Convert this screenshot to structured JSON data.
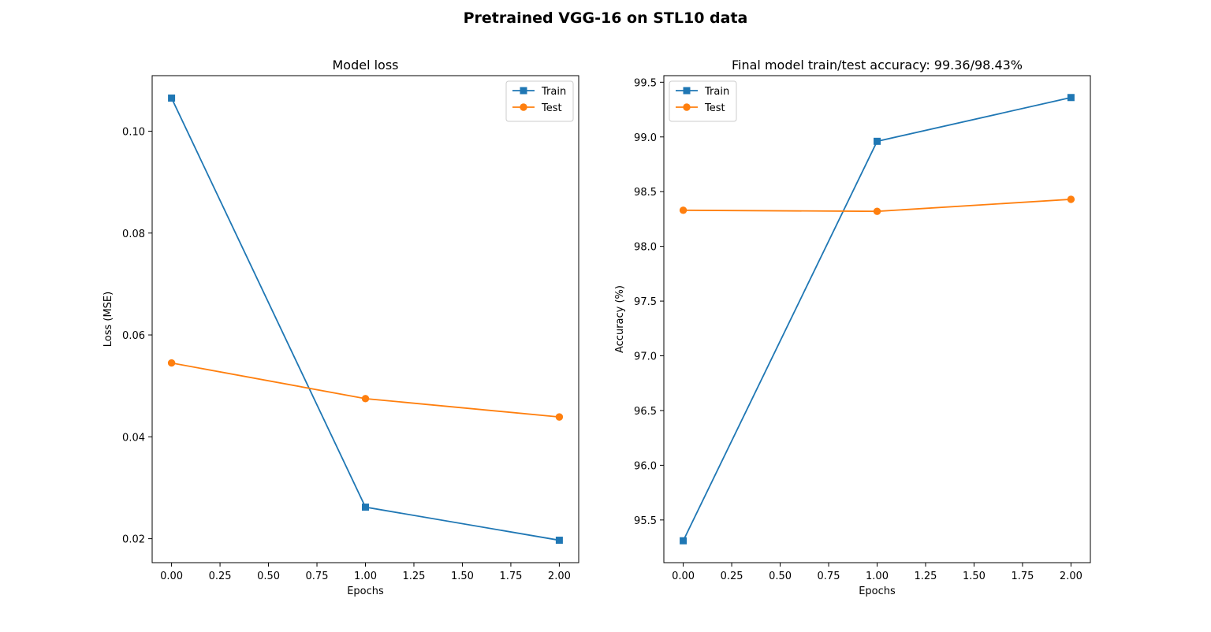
{
  "figure": {
    "suptitle": "Pretrained VGG-16 on STL10 data"
  },
  "chart_data": [
    {
      "type": "line",
      "title": "Model loss",
      "xlabel": "Epochs",
      "ylabel": "Loss (MSE)",
      "x": [
        0,
        1,
        2
      ],
      "xlim": [
        -0.1,
        2.1
      ],
      "ylim": [
        0.0153,
        0.1109
      ],
      "xticks": [
        0.0,
        0.25,
        0.5,
        0.75,
        1.0,
        1.25,
        1.5,
        1.75,
        2.0
      ],
      "xtick_labels": [
        "0.00",
        "0.25",
        "0.50",
        "0.75",
        "1.00",
        "1.25",
        "1.50",
        "1.75",
        "2.00"
      ],
      "yticks": [
        0.02,
        0.04,
        0.06,
        0.08,
        0.1
      ],
      "ytick_labels": [
        "0.02",
        "0.04",
        "0.06",
        "0.08",
        "0.10"
      ],
      "legend_position": "top-right",
      "grid": false,
      "series": [
        {
          "name": "Train",
          "values": [
            0.1065,
            0.0262,
            0.0197
          ],
          "color": "#1f77b4",
          "marker": "square"
        },
        {
          "name": "Test",
          "values": [
            0.0545,
            0.0475,
            0.0439
          ],
          "color": "#ff7f0e",
          "marker": "circle"
        }
      ]
    },
    {
      "type": "line",
      "title": "Final model train/test accuracy: 99.36/98.43%",
      "xlabel": "Epochs",
      "ylabel": "Accuracy (%)",
      "x": [
        0,
        1,
        2
      ],
      "xlim": [
        -0.1,
        2.1
      ],
      "ylim": [
        95.11,
        99.56
      ],
      "xticks": [
        0.0,
        0.25,
        0.5,
        0.75,
        1.0,
        1.25,
        1.5,
        1.75,
        2.0
      ],
      "xtick_labels": [
        "0.00",
        "0.25",
        "0.50",
        "0.75",
        "1.00",
        "1.25",
        "1.50",
        "1.75",
        "2.00"
      ],
      "yticks": [
        95.5,
        96.0,
        96.5,
        97.0,
        97.5,
        98.0,
        98.5,
        99.0,
        99.5
      ],
      "ytick_labels": [
        "95.5",
        "96.0",
        "96.5",
        "97.0",
        "97.5",
        "98.0",
        "98.5",
        "99.0",
        "99.5"
      ],
      "legend_position": "top-left",
      "grid": false,
      "series": [
        {
          "name": "Train",
          "values": [
            95.31,
            98.96,
            99.36
          ],
          "color": "#1f77b4",
          "marker": "square"
        },
        {
          "name": "Test",
          "values": [
            98.33,
            98.32,
            98.43
          ],
          "color": "#ff7f0e",
          "marker": "circle"
        }
      ]
    }
  ]
}
